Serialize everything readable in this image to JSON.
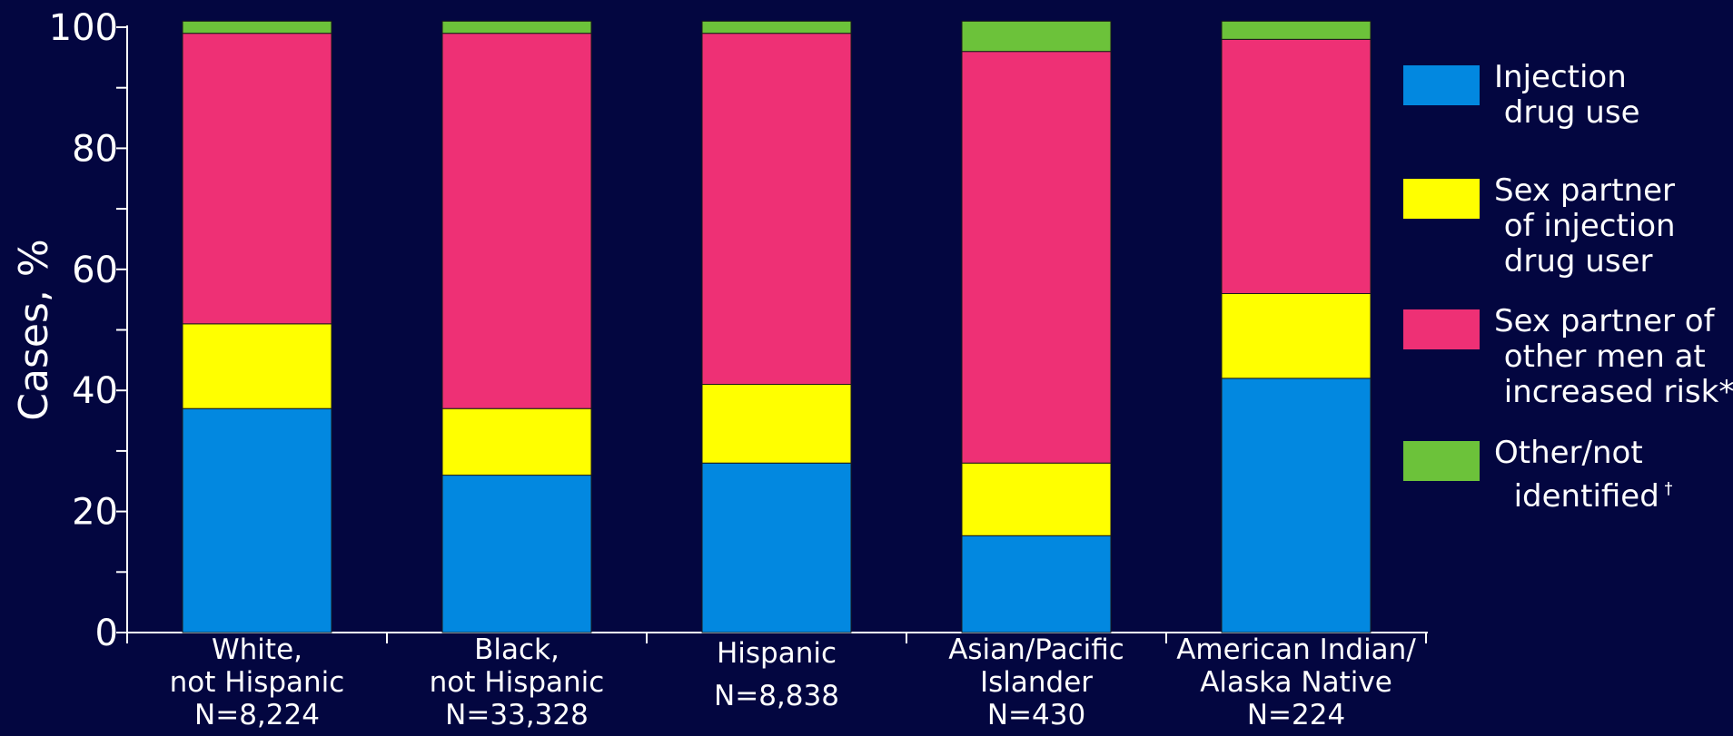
{
  "chart_data": {
    "type": "bar",
    "stacked": true,
    "ylabel": "Cases, %",
    "ylim": [
      0,
      100
    ],
    "yticks": [
      0,
      20,
      40,
      60,
      80,
      100
    ],
    "grid": false,
    "legend_position": "right",
    "categories": [
      [
        "White,",
        "not Hispanic",
        "N=8,224"
      ],
      [
        "Black,",
        "not Hispanic",
        "N=33,328"
      ],
      [
        "Hispanic",
        "N=8,838"
      ],
      [
        "Asian/Pacific",
        "Islander",
        "N=430"
      ],
      [
        "American Indian/",
        "Alaska Native",
        "N=224"
      ]
    ],
    "series": [
      {
        "name": "Injection drug use",
        "legend_lines": [
          "Injection",
          " drug use"
        ],
        "color": "#0288E0",
        "values": [
          37,
          26,
          28,
          16,
          42
        ]
      },
      {
        "name": "Sex partner of injection drug user",
        "legend_lines": [
          "Sex partner",
          " of injection",
          " drug user"
        ],
        "color": "#FFFF00",
        "values": [
          14,
          11,
          13,
          12,
          14
        ]
      },
      {
        "name": "Sex partner of other men at increased risk*",
        "legend_lines": [
          "Sex partner of",
          " other men at",
          " increased risk*"
        ],
        "color": "#EE3075",
        "values": [
          48,
          62,
          58,
          68,
          42
        ]
      },
      {
        "name": "Other/not identified †",
        "legend_lines": [
          "Other/not",
          "  identified"
        ],
        "legend_mark": "†",
        "color": "#6CC23A",
        "values": [
          2,
          2,
          2,
          5,
          3
        ]
      }
    ]
  }
}
